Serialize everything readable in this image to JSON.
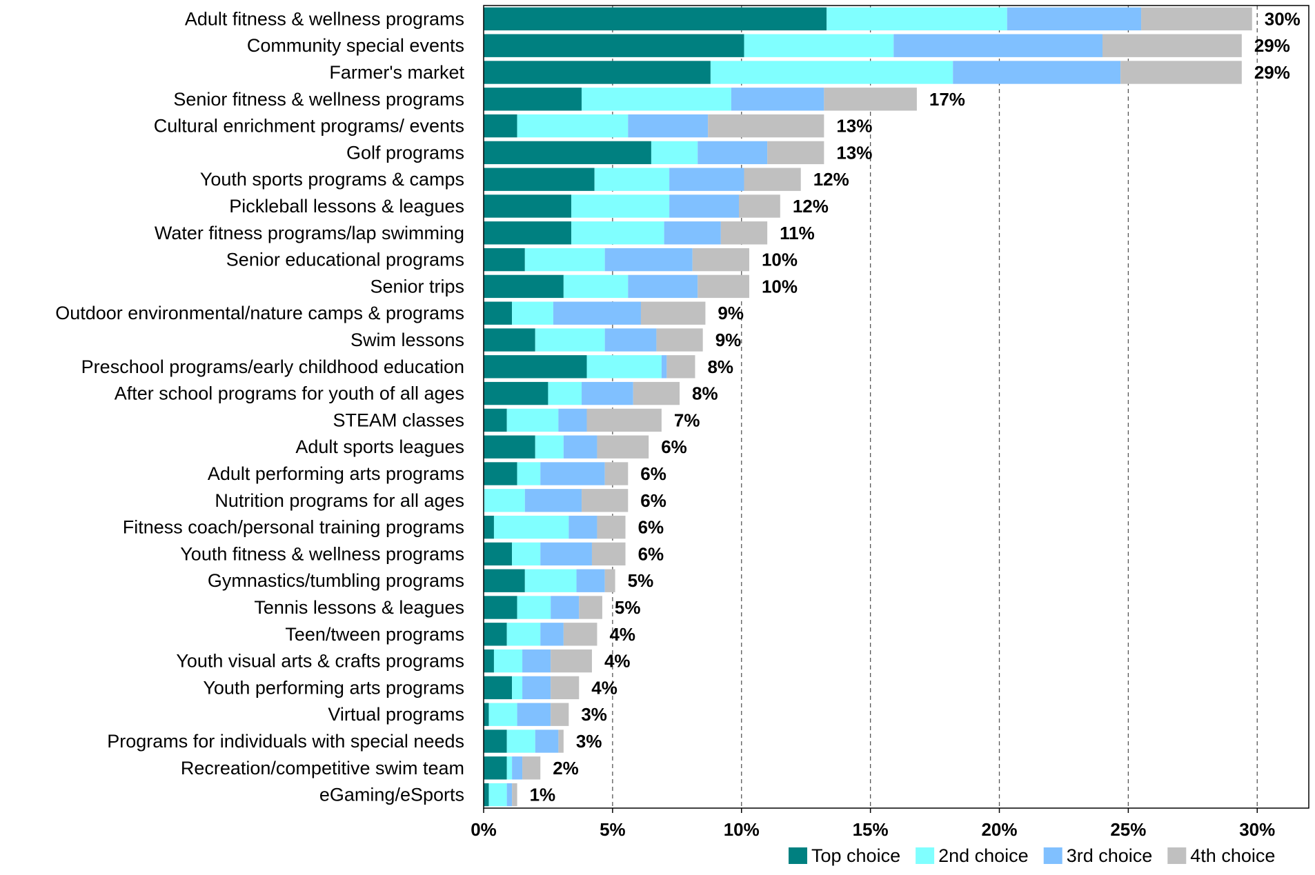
{
  "chart_data": {
    "type": "bar",
    "orientation": "horizontal",
    "stacked": true,
    "categories": [
      "Adult fitness & wellness programs",
      "Community special events",
      "Farmer's market",
      "Senior fitness & wellness programs",
      "Cultural enrichment programs/ events",
      "Golf programs",
      "Youth sports programs & camps",
      "Pickleball lessons & leagues",
      "Water fitness programs/lap swimming",
      "Senior educational programs",
      "Senior trips",
      "Outdoor environmental/nature camps & programs",
      "Swim lessons",
      "Preschool programs/early childhood education",
      "After school programs for youth of all ages",
      "STEAM classes",
      "Adult sports leagues",
      "Adult performing arts programs",
      "Nutrition programs for all ages",
      "Fitness coach/personal training programs",
      "Youth fitness & wellness programs",
      "Gymnastics/tumbling programs",
      "Tennis lessons & leagues",
      "Teen/tween programs",
      "Youth visual arts & crafts programs",
      "Youth performing arts programs",
      "Virtual programs",
      "Programs for individuals with special needs",
      "Recreation/competitive swim team",
      "eGaming/eSports"
    ],
    "series": [
      {
        "name": "Top choice",
        "color": "#008080",
        "values": [
          13.3,
          10.1,
          8.8,
          3.8,
          1.3,
          6.5,
          4.3,
          3.4,
          3.4,
          1.6,
          3.1,
          1.1,
          2.0,
          4.0,
          2.5,
          0.9,
          2.0,
          1.3,
          0.0,
          0.4,
          1.1,
          1.6,
          1.3,
          0.9,
          0.4,
          1.1,
          0.2,
          0.9,
          0.9,
          0.2
        ]
      },
      {
        "name": "2nd choice",
        "color": "#80FFFF",
        "values": [
          7.0,
          5.8,
          9.4,
          5.8,
          4.3,
          1.8,
          2.9,
          3.8,
          3.6,
          3.1,
          2.5,
          1.6,
          2.7,
          2.9,
          1.3,
          2.0,
          1.1,
          0.9,
          1.6,
          2.9,
          1.1,
          2.0,
          1.3,
          1.3,
          1.1,
          0.4,
          1.1,
          1.1,
          0.2,
          0.7
        ]
      },
      {
        "name": "3rd choice",
        "color": "#80C0FF",
        "values": [
          5.2,
          8.1,
          6.5,
          3.6,
          3.1,
          2.7,
          2.9,
          2.7,
          2.2,
          3.4,
          2.7,
          3.4,
          2.0,
          0.2,
          2.0,
          1.1,
          1.3,
          2.5,
          2.2,
          1.1,
          2.0,
          1.1,
          1.1,
          0.9,
          1.1,
          1.1,
          1.3,
          0.9,
          0.4,
          0.2
        ]
      },
      {
        "name": "4th choice",
        "color": "#C0C0C0",
        "values": [
          4.3,
          5.4,
          4.7,
          3.6,
          4.5,
          2.2,
          2.2,
          1.6,
          1.8,
          2.2,
          2.0,
          2.5,
          1.8,
          1.1,
          1.8,
          2.9,
          2.0,
          0.9,
          1.8,
          1.1,
          1.3,
          0.4,
          0.9,
          1.3,
          1.6,
          1.1,
          0.7,
          0.2,
          0.7,
          0.2
        ]
      }
    ],
    "totals": [
      "30%",
      "29%",
      "29%",
      "17%",
      "13%",
      "13%",
      "12%",
      "12%",
      "11%",
      "10%",
      "10%",
      "9%",
      "9%",
      "8%",
      "8%",
      "7%",
      "6%",
      "6%",
      "6%",
      "6%",
      "6%",
      "5%",
      "5%",
      "4%",
      "4%",
      "4%",
      "3%",
      "3%",
      "2%",
      "1%"
    ],
    "xlim": [
      0,
      32
    ],
    "xticks": [
      0,
      5,
      10,
      15,
      20,
      25,
      30
    ],
    "xtick_labels": [
      "0%",
      "5%",
      "10%",
      "15%",
      "20%",
      "25%",
      "30%"
    ],
    "grid": "vertical dashed",
    "legend_position": "bottom-right",
    "title": "",
    "xlabel": "",
    "ylabel": ""
  }
}
